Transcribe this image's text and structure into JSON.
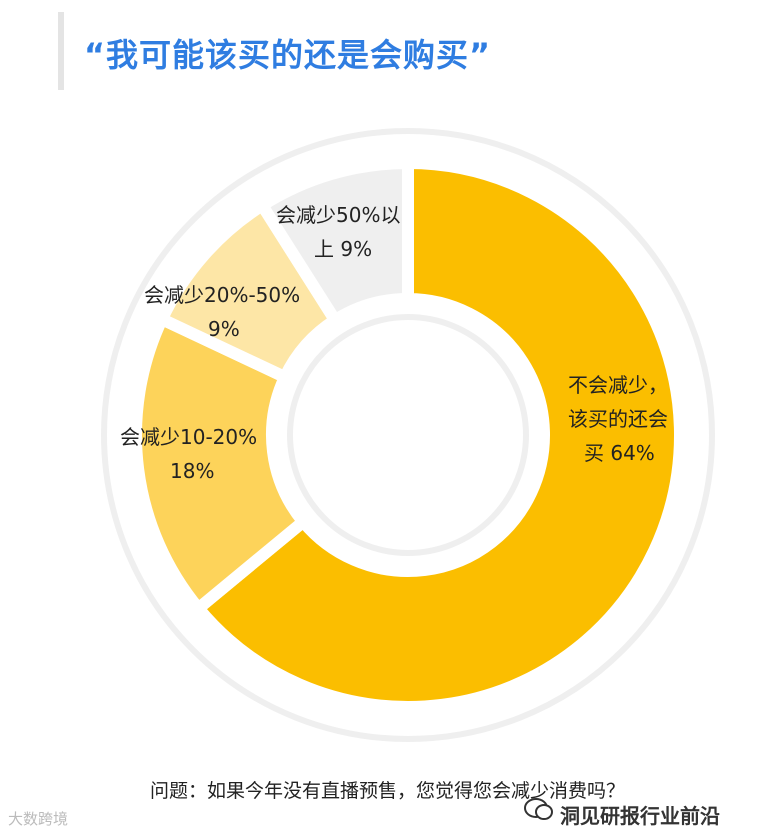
{
  "title": "“我可能该买的还是会购买”",
  "question": "问题：如果今年没有直播预售，您觉得您会减少消费吗？",
  "source": "洞见研报行业前沿",
  "brand": "大数跨境",
  "chart_data": {
    "type": "pie",
    "donut": true,
    "title": "“我可能该买的还是会购买”",
    "categories": [
      "不会减少，该买的还会买",
      "会减少10-20%",
      "会减少20%-50%",
      "会减少50%以上"
    ],
    "values": [
      64,
      18,
      9,
      9
    ],
    "colors": [
      "#fbbe00",
      "#fdd35a",
      "#fde6a6",
      "#efefef"
    ],
    "labels": [
      [
        "不会减少，",
        "该买的还会",
        "买 64%"
      ],
      [
        "会减少10-20%",
        "18%"
      ],
      [
        "会减少20%-50%",
        "9%"
      ],
      [
        "会减少50%以",
        "上 9%"
      ]
    ]
  }
}
